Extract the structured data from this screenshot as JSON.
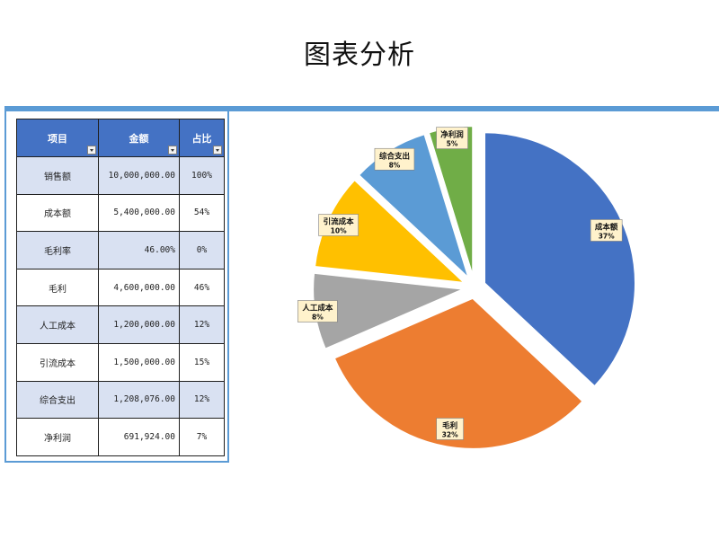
{
  "title": "图表分析",
  "table": {
    "headers": [
      "项目",
      "金额",
      "占比"
    ],
    "rows": [
      {
        "name": "销售额",
        "amount": "10,000,000.00",
        "pct": "100%"
      },
      {
        "name": "成本额",
        "amount": "5,400,000.00",
        "pct": "54%"
      },
      {
        "name": "毛利率",
        "amount": "46.00%",
        "pct": "0%"
      },
      {
        "name": "毛利",
        "amount": "4,600,000.00",
        "pct": "46%"
      },
      {
        "name": "人工成本",
        "amount": "1,200,000.00",
        "pct": "12%"
      },
      {
        "name": "引流成本",
        "amount": "1,500,000.00",
        "pct": "15%"
      },
      {
        "name": "综合支出",
        "amount": "1,208,076.00",
        "pct": "12%"
      },
      {
        "name": "净利润",
        "amount": "691,924.00",
        "pct": "7%"
      }
    ]
  },
  "chart_data": {
    "type": "pie",
    "categories": [
      "成本额",
      "毛利",
      "人工成本",
      "引流成本",
      "综合支出",
      "净利润"
    ],
    "values": [
      5400000,
      4600000,
      1200000,
      1500000,
      1208076,
      691924
    ],
    "data_labels": [
      "37%",
      "32%",
      "8%",
      "10%",
      "8%",
      "5%"
    ],
    "colors": [
      "#4472c4",
      "#ed7d31",
      "#a5a5a5",
      "#ffc000",
      "#5b9bd5",
      "#70ad47"
    ],
    "start_angle_deg": 0,
    "direction": "clockwise",
    "exploded": true,
    "legend": "none"
  }
}
